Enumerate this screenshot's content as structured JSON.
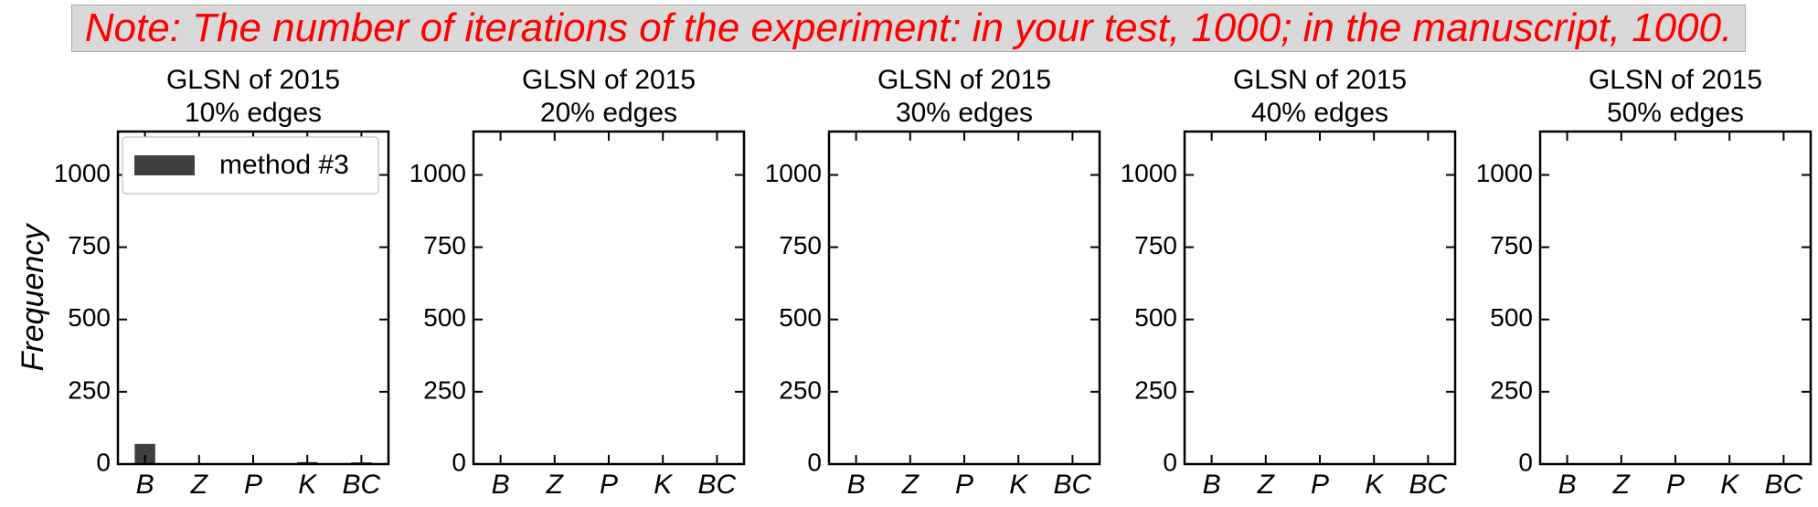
{
  "note": "Note: The number of iterations of the experiment: in your test, 1000; in the manuscript, 1000.",
  "ylabel": "Frequency",
  "colors": {
    "bar": "#404040",
    "note_text": "#ff0000",
    "note_bg": "#d9d9d9",
    "axis": "#000000"
  },
  "chart_data": [
    {
      "type": "bar",
      "title": "GLSN of 2015\n10% edges",
      "categories": [
        "B",
        "Z",
        "P",
        "K",
        "BC"
      ],
      "series": [
        {
          "name": "method #3",
          "values": [
            70,
            0,
            0,
            7,
            6
          ]
        }
      ],
      "ylim": [
        0,
        1150
      ],
      "yticks": [
        0,
        250,
        500,
        750,
        1000
      ],
      "legend": "top-left"
    },
    {
      "type": "bar",
      "title": "GLSN of 2015\n20% edges",
      "categories": [
        "B",
        "Z",
        "P",
        "K",
        "BC"
      ],
      "series": [
        {
          "values": [
            3,
            0,
            0,
            0,
            0
          ]
        }
      ],
      "ylim": [
        0,
        1150
      ],
      "yticks": [
        0,
        250,
        500,
        750,
        1000
      ]
    },
    {
      "type": "bar",
      "title": "GLSN of 2015\n30% edges",
      "categories": [
        "B",
        "Z",
        "P",
        "K",
        "BC"
      ],
      "series": [
        {
          "values": [
            0,
            0,
            0,
            0,
            0
          ]
        }
      ],
      "ylim": [
        0,
        1150
      ],
      "yticks": [
        0,
        250,
        500,
        750,
        1000
      ]
    },
    {
      "type": "bar",
      "title": "GLSN of 2015\n40% edges",
      "categories": [
        "B",
        "Z",
        "P",
        "K",
        "BC"
      ],
      "series": [
        {
          "values": [
            0,
            0,
            0,
            0,
            0
          ]
        }
      ],
      "ylim": [
        0,
        1150
      ],
      "yticks": [
        0,
        250,
        500,
        750,
        1000
      ]
    },
    {
      "type": "bar",
      "title": "GLSN of 2015\n50% edges",
      "categories": [
        "B",
        "Z",
        "P",
        "K",
        "BC"
      ],
      "series": [
        {
          "values": [
            0,
            0,
            0,
            0,
            0
          ]
        }
      ],
      "ylim": [
        0,
        1150
      ],
      "yticks": [
        0,
        250,
        500,
        750,
        1000
      ]
    }
  ]
}
